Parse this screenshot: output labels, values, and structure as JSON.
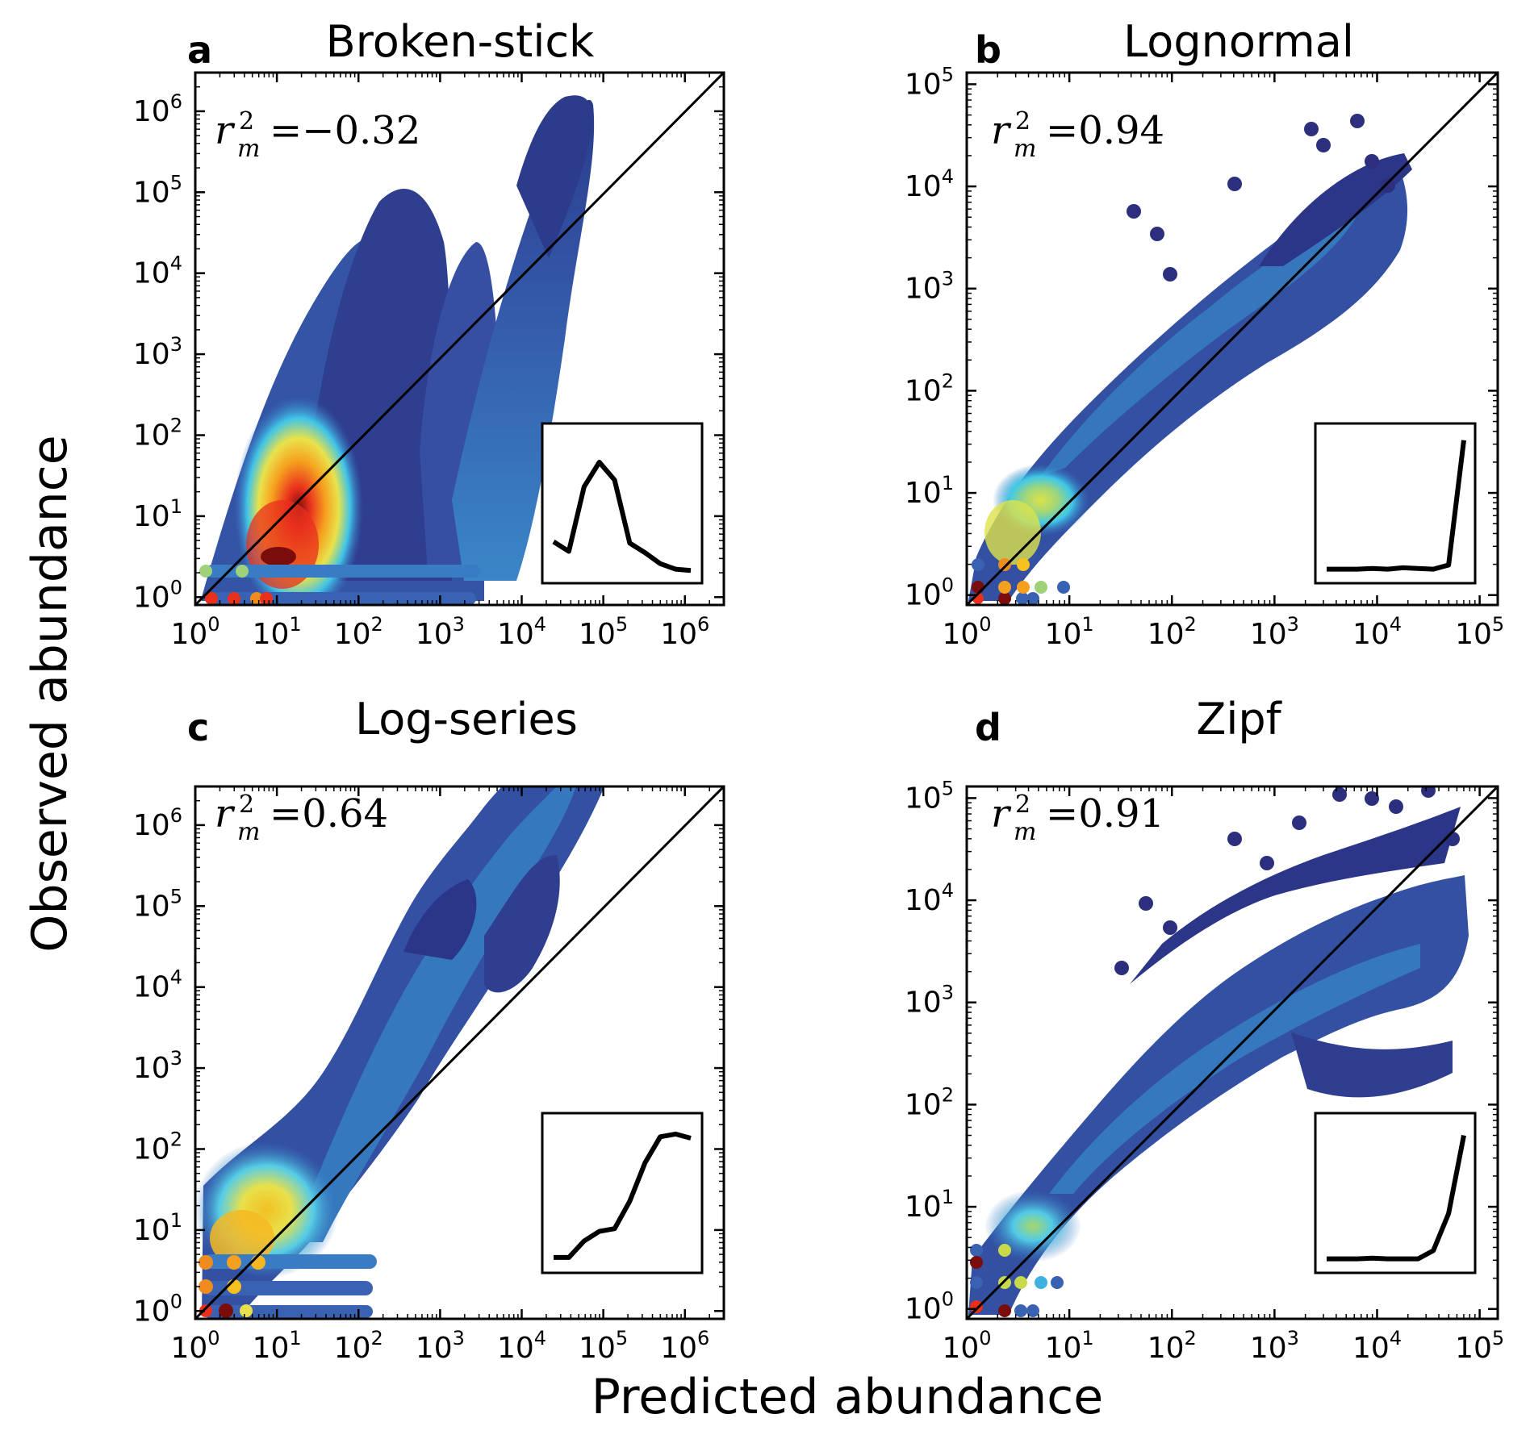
{
  "figure": {
    "xlabel": "Predicted abundance",
    "ylabel": "Observed abundance"
  },
  "colors": {
    "low_density": "#2b2f7e",
    "mid_density": "#3aa7dd",
    "high_density": "#e8301d",
    "peak_density": "#7a0c0c",
    "line": "#000000"
  },
  "chart_data": [
    {
      "type": "scatter",
      "panel": "a",
      "title": "Broken-stick",
      "scale": "log",
      "xlim": [
        1,
        3000000
      ],
      "ylim": [
        0.8,
        3000000
      ],
      "xticks": [
        "10^0",
        "10^1",
        "10^2",
        "10^3",
        "10^4",
        "10^5",
        "10^6"
      ],
      "yticks": [
        "10^0",
        "10^1",
        "10^2",
        "10^3",
        "10^4",
        "10^5",
        "10^6"
      ],
      "r2_label": "r",
      "r2_sub": "m",
      "r2_sup": "2",
      "r2_value": "=−0.32",
      "one_to_one_line": true,
      "inset": {
        "type": "line",
        "values": [
          0.22,
          0.15,
          0.62,
          0.8,
          0.67,
          0.21,
          0.14,
          0.06,
          0.02,
          0.01
        ]
      }
    },
    {
      "type": "scatter",
      "panel": "b",
      "title": "Lognormal",
      "scale": "log",
      "xlim": [
        1,
        150000
      ],
      "ylim": [
        0.8,
        130000
      ],
      "xticks": [
        "10^0",
        "10^1",
        "10^2",
        "10^3",
        "10^4",
        "10^5"
      ],
      "yticks": [
        "10^0",
        "10^1",
        "10^2",
        "10^3",
        "10^4",
        "10^5"
      ],
      "r2_label": "r",
      "r2_sub": "m",
      "r2_sup": "2",
      "r2_value": "=0.94",
      "one_to_one_line": true,
      "inset": {
        "type": "line",
        "values": [
          0.02,
          0.02,
          0.02,
          0.025,
          0.02,
          0.03,
          0.025,
          0.02,
          0.05,
          0.96
        ]
      }
    },
    {
      "type": "scatter",
      "panel": "c",
      "title": "Log-series",
      "scale": "log",
      "xlim": [
        1,
        3000000
      ],
      "ylim": [
        0.8,
        3000000
      ],
      "xticks": [
        "10^0",
        "10^1",
        "10^2",
        "10^3",
        "10^4",
        "10^5",
        "10^6"
      ],
      "yticks": [
        "10^0",
        "10^1",
        "10^2",
        "10^3",
        "10^4",
        "10^5",
        "10^6"
      ],
      "r2_label": "r",
      "r2_sub": "m",
      "r2_sup": "2",
      "r2_value": "=0.64",
      "one_to_one_line": true,
      "inset": {
        "type": "line",
        "values": [
          0.03,
          0.03,
          0.15,
          0.22,
          0.24,
          0.44,
          0.72,
          0.91,
          0.93,
          0.9
        ]
      }
    },
    {
      "type": "scatter",
      "panel": "d",
      "title": "Zipf",
      "scale": "log",
      "xlim": [
        1,
        150000
      ],
      "ylim": [
        0.8,
        130000
      ],
      "xticks": [
        "10^0",
        "10^1",
        "10^2",
        "10^3",
        "10^4",
        "10^5"
      ],
      "yticks": [
        "10^0",
        "10^1",
        "10^2",
        "10^3",
        "10^4",
        "10^5"
      ],
      "r2_label": "r",
      "r2_sub": "m",
      "r2_sup": "2",
      "r2_value": "=0.91",
      "one_to_one_line": true,
      "inset": {
        "type": "line",
        "values": [
          0.02,
          0.02,
          0.02,
          0.025,
          0.02,
          0.02,
          0.02,
          0.08,
          0.35,
          0.92
        ]
      }
    }
  ]
}
